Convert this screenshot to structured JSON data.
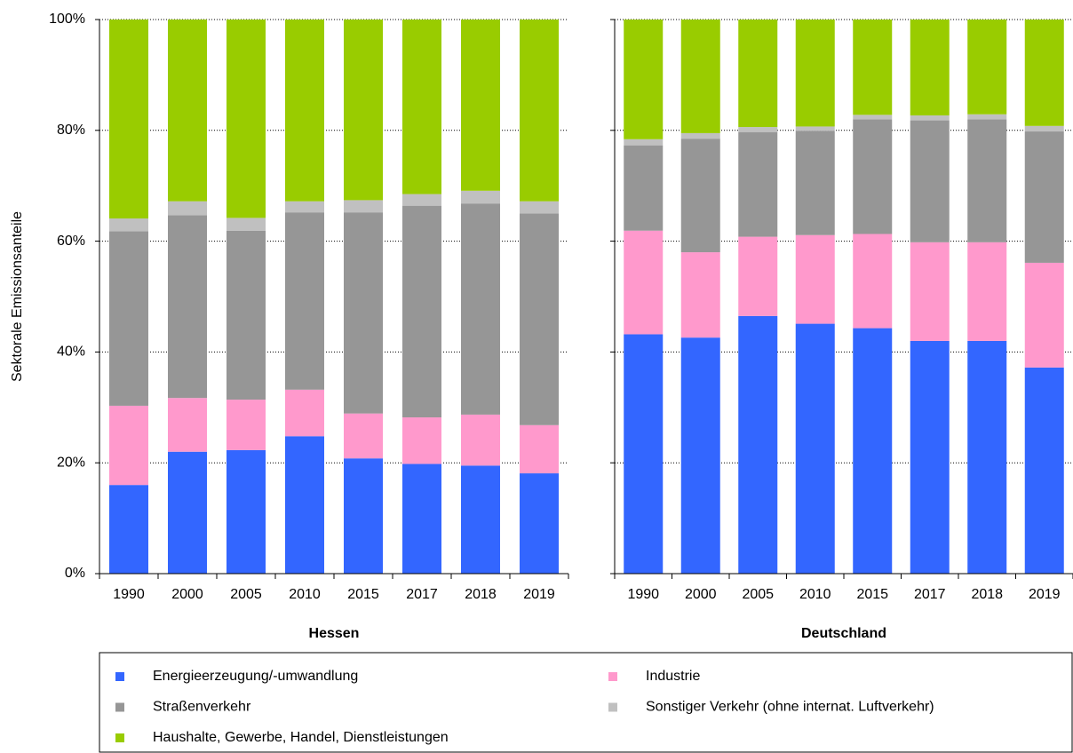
{
  "chart_data": [
    {
      "type": "stacked-bar",
      "xlabel": "Hessen",
      "ylabel": "Sektorale Emissionsanteile",
      "categories": [
        "1990",
        "2000",
        "2005",
        "2010",
        "2015",
        "2017",
        "2018",
        "2019"
      ],
      "ylim": [
        0,
        100
      ],
      "yticks": [
        {
          "value": 0,
          "label": "0%"
        },
        {
          "value": 20,
          "label": "20%"
        },
        {
          "value": 40,
          "label": "40%"
        },
        {
          "value": 60,
          "label": "60%"
        },
        {
          "value": 80,
          "label": "80%"
        },
        {
          "value": 100,
          "label": "100%"
        }
      ],
      "grid": true,
      "series": [
        {
          "name": "Energieerzeugung/-umwandlung",
          "color": "#3366ff",
          "values": [
            16,
            22,
            22.3,
            24.8,
            20.8,
            19.8,
            19.5,
            18.1
          ]
        },
        {
          "name": "Industrie",
          "color": "#ff99cc",
          "values": [
            14.3,
            9.7,
            9.1,
            8.4,
            8.1,
            8.4,
            9.2,
            8.7
          ]
        },
        {
          "name": "Straßenverkehr",
          "color": "#969696",
          "values": [
            31.5,
            33,
            30.5,
            32,
            36.3,
            38.2,
            38.1,
            38.2
          ]
        },
        {
          "name": "Sonstiger Verkehr (ohne internat. Luftverkehr)",
          "color": "#c0c0c0",
          "values": [
            2.3,
            2.5,
            2.3,
            2,
            2.2,
            2.1,
            2.3,
            2.2
          ]
        },
        {
          "name": "Haushalte, Gewerbe, Handel, Dienstleistungen",
          "color": "#99cc00",
          "values": [
            35.9,
            32.8,
            35.8,
            32.8,
            32.6,
            31.5,
            30.9,
            32.8
          ]
        }
      ]
    },
    {
      "type": "stacked-bar",
      "xlabel": "Deutschland",
      "categories": [
        "1990",
        "2000",
        "2005",
        "2010",
        "2015",
        "2017",
        "2018",
        "2019"
      ],
      "ylim": [
        0,
        100
      ],
      "yticks": [
        0,
        20,
        40,
        60,
        80,
        100
      ],
      "grid": true,
      "series": [
        {
          "color": "#3366ff",
          "values": [
            43.2,
            42.6,
            46.5,
            45.1,
            44.3,
            42,
            42,
            37.2
          ]
        },
        {
          "color": "#ff99cc",
          "values": [
            18.7,
            15.4,
            14.3,
            16,
            17,
            17.8,
            17.8,
            18.9
          ]
        },
        {
          "color": "#969696",
          "values": [
            15.4,
            20.5,
            18.9,
            18.8,
            20.7,
            22,
            22.2,
            23.7
          ]
        },
        {
          "color": "#c0c0c0",
          "values": [
            1.1,
            1,
            0.9,
            0.8,
            0.8,
            0.9,
            0.9,
            1
          ]
        },
        {
          "color": "#99cc00",
          "values": [
            21.6,
            20.5,
            19.4,
            19.3,
            17.2,
            17.3,
            17.1,
            19.2
          ]
        }
      ]
    }
  ]
}
